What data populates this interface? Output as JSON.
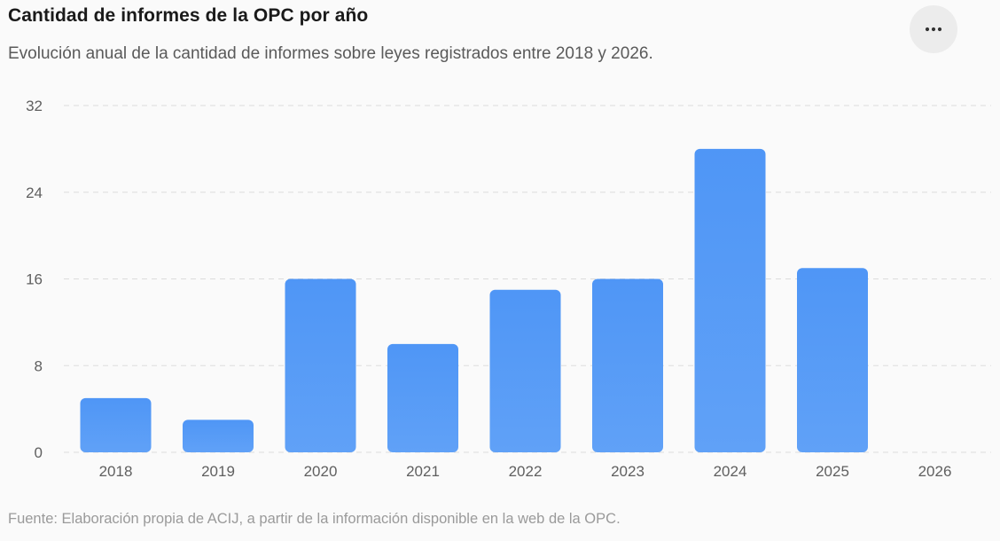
{
  "header": {
    "title": "Cantidad de informes de la OPC por año",
    "subtitle": "Evolución anual de la cantidad de informes sobre leyes registrados entre 2018 y 2026.",
    "more_icon": "more-horizontal-icon"
  },
  "footer": {
    "source": "Fuente: Elaboración propia de ACIJ, a partir de la información disponible en la web de la OPC."
  },
  "colors": {
    "bar_top": "#4f96f6",
    "bar_bottom": "#60a1f7",
    "grid": "#dcdcdc",
    "tick_text": "#5f5f5f"
  },
  "chart_data": {
    "type": "bar",
    "title": "Cantidad de informes de la OPC por año",
    "xlabel": "",
    "ylabel": "",
    "categories": [
      "2018",
      "2019",
      "2020",
      "2021",
      "2022",
      "2023",
      "2024",
      "2025",
      "2026"
    ],
    "values": [
      5,
      3,
      16,
      10,
      15,
      16,
      28,
      17,
      0
    ],
    "ylim": [
      0,
      32
    ],
    "yticks": [
      "0",
      "8",
      "16",
      "24",
      "32"
    ],
    "grid": "horizontal dashed",
    "legend": "none"
  }
}
